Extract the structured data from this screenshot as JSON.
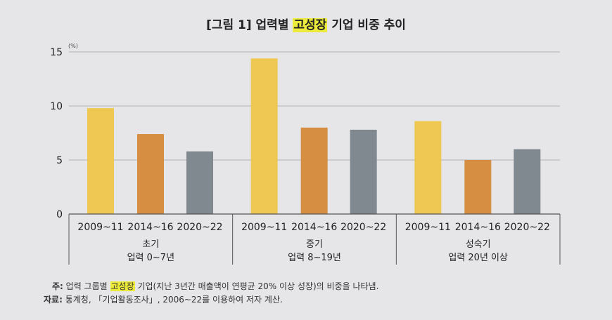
{
  "title": {
    "prefix": "[그림 1] 업력별 ",
    "highlight": "고성장",
    "suffix": " 기업 비중 추이"
  },
  "chart_data": {
    "type": "bar",
    "title": "[그림 1] 업력별 고성장 기업 비중 추이",
    "unit": "(%)",
    "ylim": [
      0,
      15
    ],
    "yticks": [
      "0",
      "5",
      "10",
      "15"
    ],
    "grid": true,
    "groups": [
      {
        "label_line1": "초기",
        "label_line2": "업력 0~7년"
      },
      {
        "label_line1": "중기",
        "label_line2": "업력 8~19년"
      },
      {
        "label_line1": "성숙기",
        "label_line2": "업력 20년 이상"
      }
    ],
    "categories": [
      "2009~11",
      "2014~16",
      "2020~22"
    ],
    "series": [
      {
        "values": [
          9.8,
          14.4,
          8.6
        ],
        "color": "#eec853"
      },
      {
        "values": [
          7.4,
          8.0,
          5.0
        ],
        "color": "#d68f42"
      },
      {
        "values": [
          5.8,
          7.8,
          6.0
        ],
        "color": "#808990"
      }
    ]
  },
  "notes": {
    "note_label": "주:",
    "note_prefix": " 업력 그룹별 ",
    "note_highlight": "고성장",
    "note_suffix": " 기업(지난 3년간 매출액이 연평균 20% 이상 성장)의 비중을 나타냄.",
    "source_label": "자료:",
    "source_text": " 통계청, 「기업활동조사」, 2006~22를 이용하여 저자 계산."
  },
  "colors": {
    "highlight": "#ecea3a",
    "background": "#e6e6e8"
  }
}
